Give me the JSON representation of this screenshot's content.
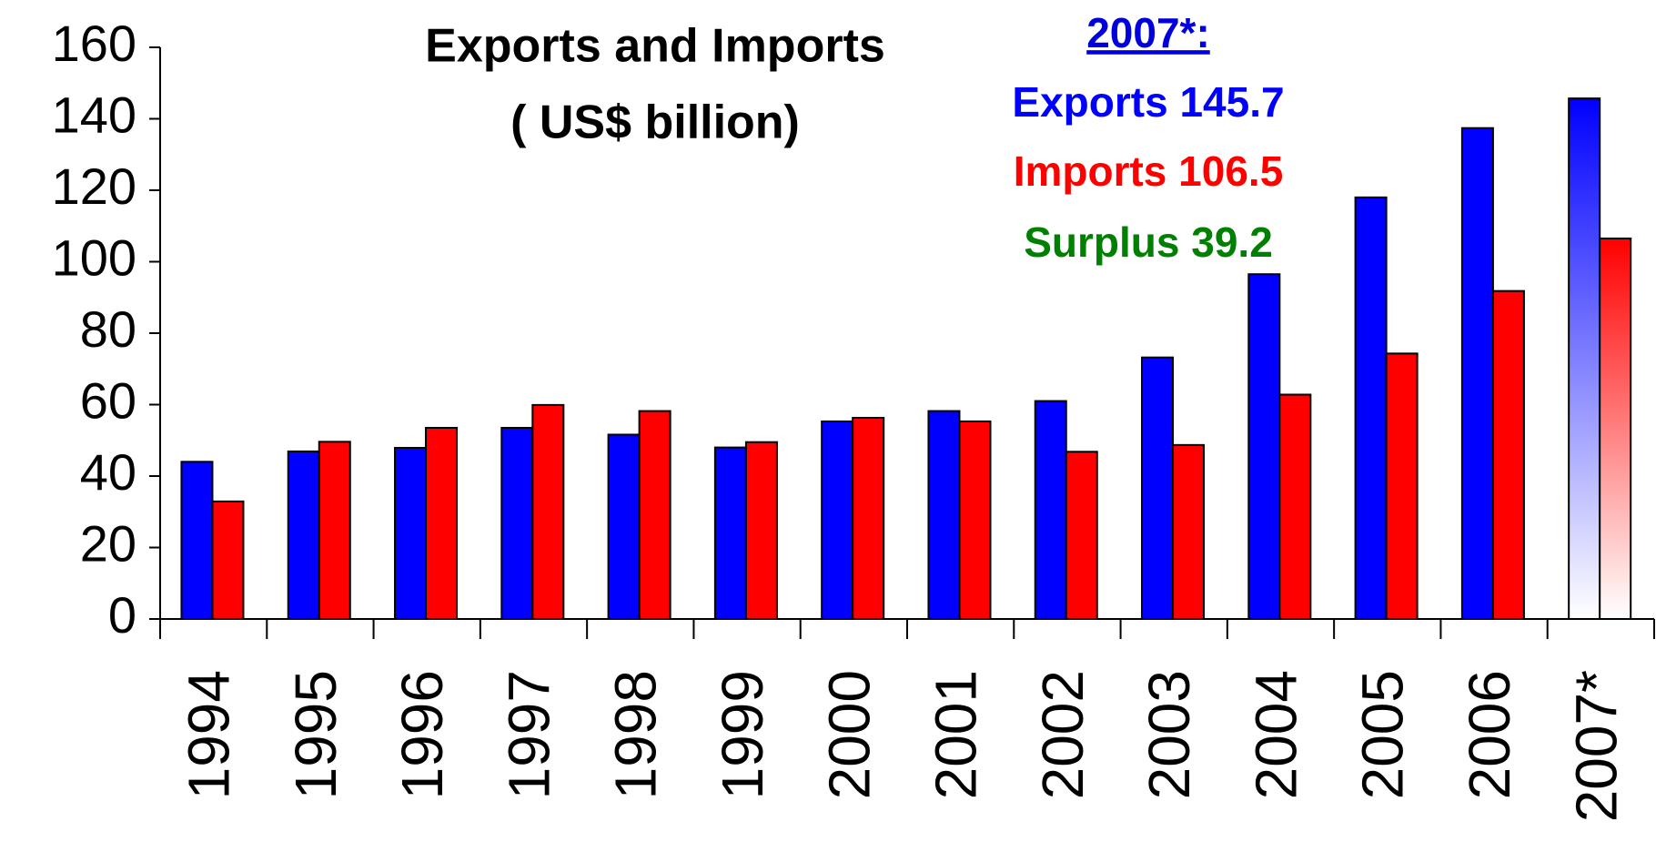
{
  "chart_data": {
    "type": "bar",
    "title": [
      "Exports and Imports",
      "( US$ billion)"
    ],
    "annotations": [
      "2007*:",
      "Exports  145.7",
      "Imports 106.5",
      "Surplus 39.2"
    ],
    "annotation_colors": [
      "#0000dd",
      "#0000ff",
      "#ff0000",
      "#008000"
    ],
    "categories": [
      "1994",
      "1995",
      "1996",
      "1997",
      "1998",
      "1999",
      "2000",
      "2001",
      "2002",
      "2003",
      "2004",
      "2005",
      "2006",
      "2007*"
    ],
    "series": [
      {
        "color": "#0000ff",
        "values": [
          44,
          46.9,
          47.9,
          53.5,
          51.6,
          48,
          55.3,
          58.2,
          61,
          73.2,
          96.5,
          118,
          137.4,
          145.7
        ]
      },
      {
        "color": "#ff0000",
        "values": [
          32.9,
          49.6,
          53.5,
          59.9,
          58.2,
          49.5,
          56.3,
          55.3,
          46.8,
          48.7,
          62.8,
          74.3,
          91.8,
          106.5
        ]
      }
    ],
    "gradient_last": true,
    "ylim": [
      0,
      160
    ],
    "yticks": [
      0,
      20,
      40,
      60,
      80,
      100,
      120,
      140,
      160
    ]
  }
}
